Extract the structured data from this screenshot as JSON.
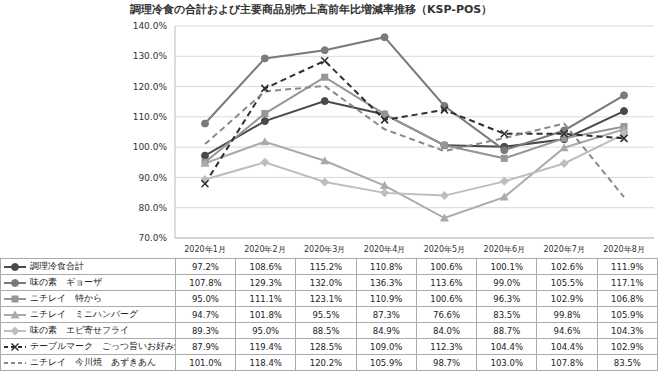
{
  "chart_data": {
    "type": "line",
    "title": "調理冷食の合計および主要商品別売上高前年比増減率推移（KSP-POS）",
    "categories": [
      "2020年1月",
      "2020年2月",
      "2020年3月",
      "2020年4月",
      "2020年5月",
      "2020年6月",
      "2020年7月",
      "2020年8月"
    ],
    "ylim": [
      70,
      140
    ],
    "yticks": [
      {
        "value": 70,
        "label": "70.0%"
      },
      {
        "value": 80,
        "label": "80.0%"
      },
      {
        "value": 90,
        "label": "90.0%"
      },
      {
        "value": 100,
        "label": "100.0%"
      },
      {
        "value": 110,
        "label": "110.0%"
      },
      {
        "value": 120,
        "label": "120.0%"
      },
      {
        "value": 130,
        "label": "130.0%"
      },
      {
        "value": 140,
        "label": "140.0%"
      }
    ],
    "grid": true,
    "series": [
      {
        "name": "調理冷食合計",
        "color": "#4a4a4a",
        "marker": "circle",
        "line_style": "solid",
        "values": [
          97.2,
          108.6,
          115.2,
          110.8,
          100.6,
          100.1,
          102.6,
          111.9
        ],
        "value_labels": [
          "97.2%",
          "108.6%",
          "115.2%",
          "110.8%",
          "100.6%",
          "100.1%",
          "102.6%",
          "111.9%"
        ]
      },
      {
        "name": "味の素　ギョーザ",
        "color": "#7a7a7a",
        "marker": "circle",
        "line_style": "solid",
        "values": [
          107.8,
          129.3,
          132.0,
          136.3,
          113.6,
          99.0,
          105.5,
          117.1
        ],
        "value_labels": [
          "107.8%",
          "129.3%",
          "132.0%",
          "136.3%",
          "113.6%",
          "99.0%",
          "105.5%",
          "117.1%"
        ]
      },
      {
        "name": "ニチレイ　特から",
        "color": "#969696",
        "marker": "square",
        "line_style": "solid",
        "values": [
          95.0,
          111.1,
          123.1,
          110.9,
          100.6,
          96.3,
          102.9,
          106.8
        ],
        "value_labels": [
          "95.0%",
          "111.1%",
          "123.1%",
          "110.9%",
          "100.6%",
          "96.3%",
          "102.9%",
          "106.8%"
        ]
      },
      {
        "name": "ニチレイ　ミニハンバーグ",
        "color": "#aaaaaa",
        "marker": "triangle",
        "line_style": "solid",
        "values": [
          94.7,
          101.8,
          95.5,
          87.3,
          76.6,
          83.5,
          99.8,
          105.9
        ],
        "value_labels": [
          "94.7%",
          "101.8%",
          "95.5%",
          "87.3%",
          "76.6%",
          "83.5%",
          "99.8%",
          "105.9%"
        ]
      },
      {
        "name": "味の素　エビ寄せフライ",
        "color": "#bdbdbd",
        "marker": "diamond",
        "line_style": "solid",
        "values": [
          89.3,
          95.0,
          88.5,
          84.9,
          84.0,
          88.7,
          94.6,
          104.3
        ],
        "value_labels": [
          "89.3%",
          "95.0%",
          "88.5%",
          "84.9%",
          "84.0%",
          "88.7%",
          "94.6%",
          "104.3%"
        ]
      },
      {
        "name": "テーブルマーク　ごっつ旨いお好み焼",
        "color": "#2e2e2e",
        "marker": "x",
        "line_style": "dashed",
        "values": [
          87.9,
          119.4,
          128.5,
          109.0,
          112.3,
          104.4,
          104.4,
          102.9
        ],
        "value_labels": [
          "87.9%",
          "119.4%",
          "128.5%",
          "109.0%",
          "112.3%",
          "104.4%",
          "104.4%",
          "102.9%"
        ]
      },
      {
        "name": "ニチレイ　今川焼　あずきあん",
        "color": "#8a8a8a",
        "marker": "none",
        "line_style": "dashed",
        "values": [
          101.0,
          118.4,
          120.2,
          105.9,
          98.7,
          103.0,
          107.8,
          83.5
        ],
        "value_labels": [
          "101.0%",
          "118.4%",
          "120.2%",
          "105.9%",
          "98.7%",
          "103.0%",
          "107.8%",
          "83.5%"
        ]
      }
    ]
  }
}
